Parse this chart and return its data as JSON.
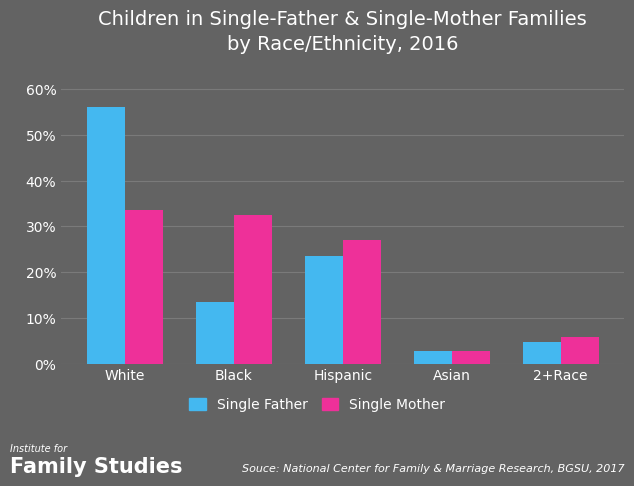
{
  "title": "Children in Single-Father & Single-Mother Families\nby Race/Ethnicity, 2016",
  "categories": [
    "White",
    "Black",
    "Hispanic",
    "Asian",
    "2+Race"
  ],
  "single_father": [
    0.56,
    0.135,
    0.235,
    0.027,
    0.048
  ],
  "single_mother": [
    0.335,
    0.325,
    0.27,
    0.027,
    0.058
  ],
  "father_color": "#44b8f0",
  "mother_color": "#ee3099",
  "background_color": "#636363",
  "text_color": "#ffffff",
  "grid_color": "#7a7a7a",
  "ylim": [
    0,
    0.65
  ],
  "yticks": [
    0.0,
    0.1,
    0.2,
    0.3,
    0.4,
    0.5,
    0.6
  ],
  "legend_labels": [
    "Single Father",
    "Single Mother"
  ],
  "source_text": "Souce: National Center for Family & Marriage Research, BGSU, 2017",
  "logo_line1": "Institute for",
  "logo_line2": "Family Studies",
  "title_fontsize": 14,
  "axis_fontsize": 10,
  "legend_fontsize": 10,
  "source_fontsize": 8
}
